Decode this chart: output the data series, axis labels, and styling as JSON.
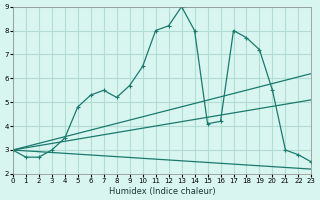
{
  "xlabel": "Humidex (Indice chaleur)",
  "ylabel": "",
  "bg_color": "#d9f5f0",
  "grid_color": "#b0ddd4",
  "line_color": "#1a7a6e",
  "xlim": [
    0,
    23
  ],
  "ylim": [
    2,
    9
  ],
  "xticks": [
    0,
    1,
    2,
    3,
    4,
    5,
    6,
    7,
    8,
    9,
    10,
    11,
    12,
    13,
    14,
    15,
    16,
    17,
    18,
    19,
    20,
    21,
    22,
    23
  ],
  "yticks": [
    2,
    3,
    4,
    5,
    6,
    7,
    8,
    9
  ],
  "series1_x": [
    0,
    1,
    2,
    3,
    4,
    5,
    6,
    7,
    8,
    9,
    10,
    11,
    12,
    13,
    14,
    15,
    16,
    17,
    18,
    19,
    20,
    21,
    22,
    23
  ],
  "series1_y": [
    3.0,
    2.7,
    2.7,
    3.0,
    3.5,
    4.8,
    5.3,
    5.5,
    5.2,
    5.7,
    6.5,
    8.0,
    8.2,
    9.0,
    8.0,
    4.1,
    4.2,
    8.0,
    7.7,
    7.2,
    5.5,
    3.0,
    2.8,
    2.5
  ],
  "series2_x": [
    0,
    23
  ],
  "series2_y": [
    3.0,
    6.2
  ],
  "series3_x": [
    0,
    23
  ],
  "series3_y": [
    3.0,
    5.1
  ],
  "series4_x": [
    0,
    23
  ],
  "series4_y": [
    3.0,
    2.2
  ]
}
